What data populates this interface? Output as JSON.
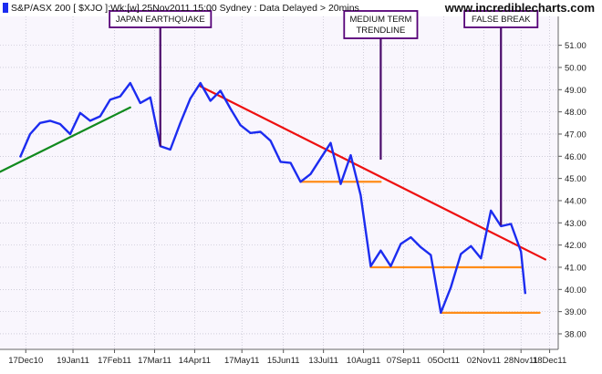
{
  "header": {
    "title": "S&P/ASX 200  [ $XJO ]:Wk:[w]  25Nov2011 15:00  Sydney : Data Delayed > 20mins",
    "watermark": "www.incrediblecharts.com"
  },
  "colors": {
    "background": "#ffffff",
    "plot_background": "#f9f6fd",
    "grid": "#b4b4c4",
    "price_line": "#1c2cf0",
    "trendline_up": "#118a1e",
    "trendline_down": "#ee1010",
    "support_lines": "#ff8c18",
    "callout_border": "#550077",
    "callout_pointer": "#4a0a6a",
    "axis_text": "#222222"
  },
  "chart_data": {
    "type": "line",
    "title": "S&P/ASX 200  [ $XJO ]:Wk:[w]  25Nov2011 15:00  Sydney : Data Delayed > 20mins",
    "xlabel": "",
    "ylabel": "",
    "ylim": [
      37.3,
      52.3
    ],
    "yticks": [
      38,
      39,
      40,
      41,
      42,
      43,
      44,
      45,
      46,
      47,
      48,
      49,
      50,
      51
    ],
    "ytick_labels": [
      "38.00",
      "39.00",
      "40.00",
      "41.00",
      "42.00",
      "43.00",
      "44.00",
      "45.00",
      "46.00",
      "47.00",
      "48.00",
      "49.00",
      "50.00",
      "51.00"
    ],
    "y_axis_position": "right",
    "xlim": [
      "2010-11-29",
      "2011-12-24"
    ],
    "xticks": [
      "2010-12-17",
      "2011-01-19",
      "2011-02-17",
      "2011-03-17",
      "2011-04-14",
      "2011-05-17",
      "2011-06-15",
      "2011-07-13",
      "2011-08-10",
      "2011-09-07",
      "2011-10-05",
      "2011-11-02",
      "2011-11-28",
      "2011-12-18"
    ],
    "xtick_labels": [
      "17Dec10",
      "19Jan11",
      "17Feb11",
      "17Mar11",
      "14Apr11",
      "17May11",
      "15Jun11",
      "13Jul11",
      "10Aug11",
      "07Sep11",
      "05Oct11",
      "02Nov11",
      "28Nov11",
      "18Dec11"
    ],
    "grid": true,
    "series": [
      {
        "role": "price",
        "x": [
          "2010-12-13",
          "2010-12-20",
          "2010-12-27",
          "2011-01-03",
          "2011-01-10",
          "2011-01-17",
          "2011-01-24",
          "2011-01-31",
          "2011-02-07",
          "2011-02-14",
          "2011-02-21",
          "2011-02-28",
          "2011-03-07",
          "2011-03-14",
          "2011-03-21",
          "2011-03-28",
          "2011-04-04",
          "2011-04-11",
          "2011-04-18",
          "2011-04-25",
          "2011-05-02",
          "2011-05-09",
          "2011-05-16",
          "2011-05-23",
          "2011-05-30",
          "2011-06-06",
          "2011-06-13",
          "2011-06-20",
          "2011-06-27",
          "2011-07-04",
          "2011-07-11",
          "2011-07-18",
          "2011-07-25",
          "2011-08-01",
          "2011-08-08",
          "2011-08-15",
          "2011-08-22",
          "2011-08-29",
          "2011-09-05",
          "2011-09-12",
          "2011-09-19",
          "2011-09-26",
          "2011-10-03",
          "2011-10-10",
          "2011-10-17",
          "2011-10-24",
          "2011-10-31",
          "2011-11-07",
          "2011-11-14",
          "2011-11-21"
        ],
        "y": [
          45.95,
          47.0,
          47.5,
          47.6,
          47.45,
          47.0,
          47.95,
          47.6,
          47.8,
          48.55,
          48.7,
          49.3,
          48.4,
          48.65,
          46.45,
          46.3,
          47.5,
          48.6,
          49.3,
          48.5,
          48.95,
          48.15,
          47.4,
          47.05,
          47.1,
          46.7,
          45.75,
          45.7,
          44.85,
          45.2,
          45.9,
          46.6,
          44.75,
          46.05,
          44.25,
          41.05,
          41.75,
          41.05,
          42.05,
          42.35,
          41.9,
          41.55,
          38.95,
          40.1,
          41.6,
          41.95,
          41.4,
          43.55,
          42.85,
          42.95
        ]
      },
      {
        "role": "trendline_up",
        "x": [
          "2010-11-29",
          "2011-02-28"
        ],
        "y": [
          45.3,
          48.2
        ]
      },
      {
        "role": "trendline_down",
        "x": [
          "2011-04-18",
          "2011-12-15"
        ],
        "y": [
          49.15,
          41.35
        ]
      },
      {
        "role": "support",
        "x": [
          "2011-06-27",
          "2011-08-22"
        ],
        "y": [
          44.85,
          44.85
        ]
      },
      {
        "role": "support",
        "x": [
          "2011-08-15",
          "2011-11-28"
        ],
        "y": [
          41.0,
          41.0
        ]
      },
      {
        "role": "support",
        "x": [
          "2011-10-03",
          "2011-12-11"
        ],
        "y": [
          38.95,
          38.95
        ]
      }
    ],
    "tail": {
      "x": [
        "2011-11-21",
        "2011-11-28",
        "2011-12-01"
      ],
      "y": [
        42.95,
        41.7,
        39.8
      ]
    },
    "annotations": [
      {
        "label": "JAPAN EARTHQUAKE",
        "x": "2011-03-21",
        "y": 46.45
      },
      {
        "label": "MEDIUM TERM\nTRENDLINE",
        "x": "2011-08-22",
        "y": 45.85
      },
      {
        "label": "FALSE BREAK",
        "x": "2011-11-14",
        "y": 42.9
      }
    ]
  }
}
